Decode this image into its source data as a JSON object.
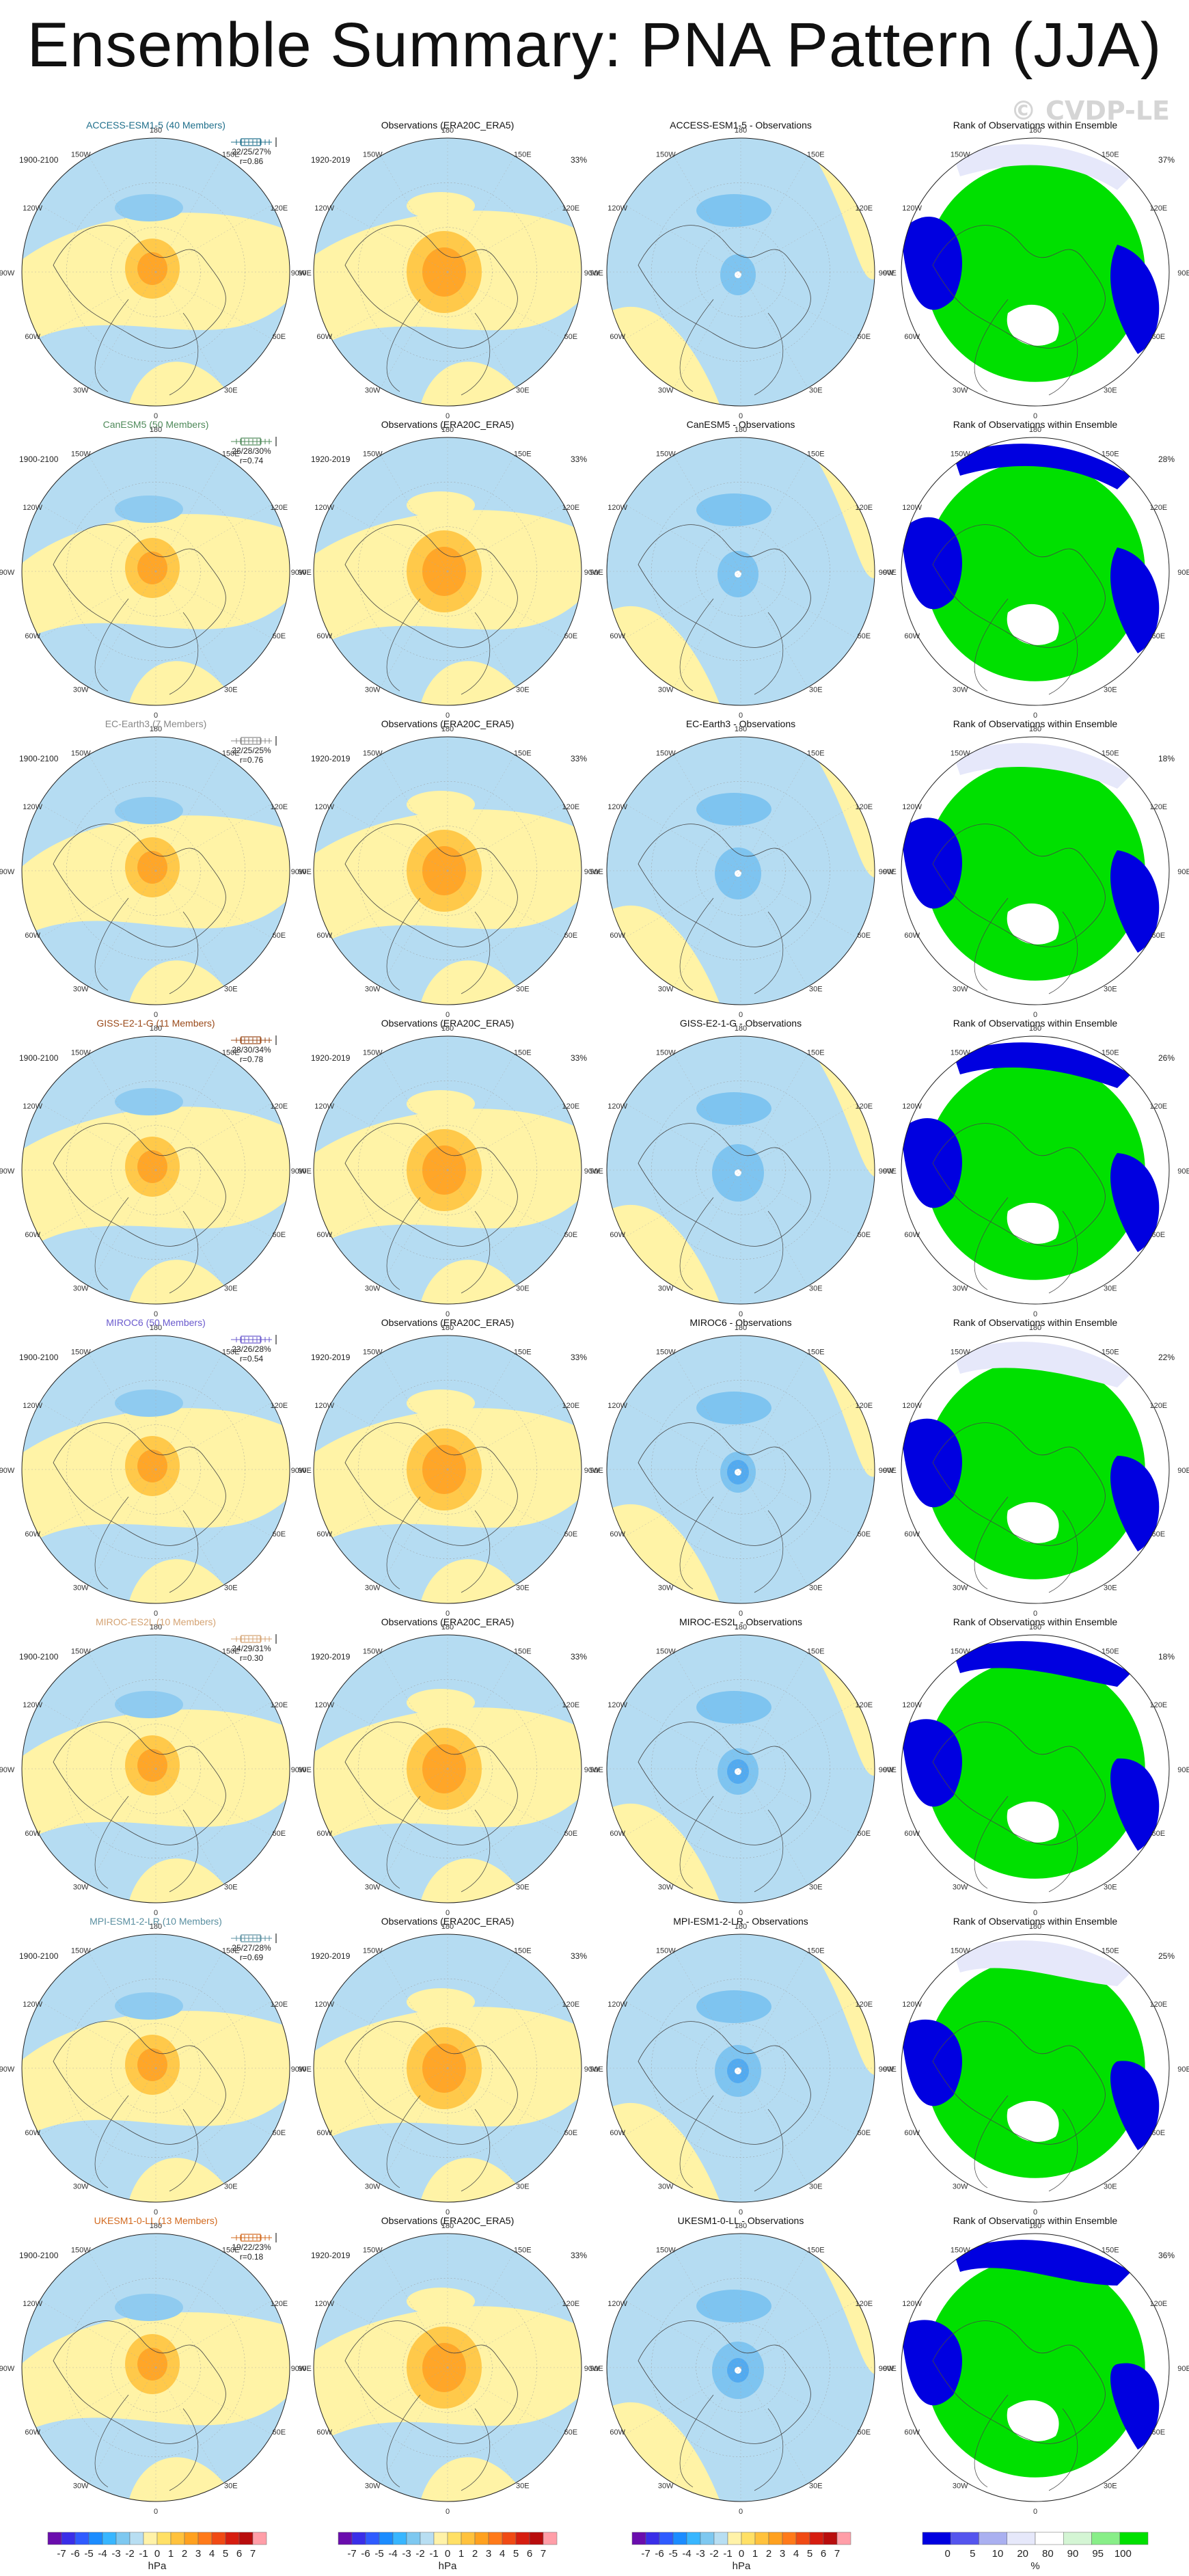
{
  "title": "Ensemble Summary: PNA Pattern (JJA)",
  "watermark": "© CVDP-LE",
  "column_titles": {
    "obs": "Observations (ERA20C_ERA5)",
    "rank": "Rank of Observations within Ensemble"
  },
  "periods": {
    "model": "1900-2100",
    "obs": "1920-2019"
  },
  "obs_percent": "33%",
  "lon_labels": [
    "180",
    "150W",
    "150E",
    "120W",
    "120E",
    "90W",
    "90E",
    "60W",
    "60E",
    "30W",
    "30E",
    "0"
  ],
  "rows": [
    {
      "model": "ACCESS-ESM1-5 (40 Members)",
      "diff_title": "ACCESS-ESM1-5 - Observations",
      "stats": "22/25/27%",
      "corr": "r=0.86",
      "rank_pct": "37%",
      "color": "#1f6f8b"
    },
    {
      "model": "CanESM5 (50 Members)",
      "diff_title": "CanESM5 - Observations",
      "stats": "26/28/30%",
      "corr": "r=0.74",
      "rank_pct": "28%",
      "color": "#4f8a5a"
    },
    {
      "model": "EC-Earth3 (7 Members)",
      "diff_title": "EC-Earth3 - Observations",
      "stats": "22/25/25%",
      "corr": "r=0.76",
      "rank_pct": "18%",
      "color": "#888888"
    },
    {
      "model": "GISS-E2-1-G (11 Members)",
      "diff_title": "GISS-E2-1-G - Observations",
      "stats": "28/30/34%",
      "corr": "r=0.78",
      "rank_pct": "26%",
      "color": "#9a4a1a"
    },
    {
      "model": "MIROC6 (50 Members)",
      "diff_title": "MIROC6 - Observations",
      "stats": "23/26/28%",
      "corr": "r=0.54",
      "rank_pct": "22%",
      "color": "#6a5acd"
    },
    {
      "model": "MIROC-ES2L (10 Members)",
      "diff_title": "MIROC-ES2L - Observations",
      "stats": "24/29/31%",
      "corr": "r=0.30",
      "rank_pct": "18%",
      "color": "#d4a373"
    },
    {
      "model": "MPI-ESM1-2-LR (10 Members)",
      "diff_title": "MPI-ESM1-2-LR - Observations",
      "stats": "25/27/28%",
      "corr": "r=0.69",
      "rank_pct": "25%",
      "color": "#5a8fa0"
    },
    {
      "model": "UKESM1-0-LL (13 Members)",
      "diff_title": "UKESM1-0-LL - Observations",
      "stats": "19/22/23%",
      "corr": "r=0.18",
      "rank_pct": "36%",
      "color": "#d2691e"
    }
  ],
  "colorbars": {
    "hpa": {
      "unit": "hPa",
      "labels": [
        "-7",
        "-6",
        "-5",
        "-4",
        "-3",
        "-2",
        "-1",
        "0",
        "1",
        "2",
        "3",
        "4",
        "5",
        "6",
        "7"
      ],
      "colors": [
        "#6a0dad",
        "#3a2ee8",
        "#2f5bff",
        "#1c8cff",
        "#38b6ff",
        "#7ec8f0",
        "#b8def2",
        "#fff2a8",
        "#ffe066",
        "#ffc23d",
        "#ffa11f",
        "#ff7a1a",
        "#f04a14",
        "#d61d10",
        "#b80d0d",
        "#ff9ea8"
      ]
    },
    "rank": {
      "unit": "%",
      "labels": [
        "0",
        "5",
        "10",
        "20",
        "80",
        "90",
        "95",
        "100"
      ],
      "colors": [
        "#0000e0",
        "#5555ee",
        "#aab0f0",
        "#e6e8fa",
        "#ffffff",
        "#d4f5d4",
        "#88ee88",
        "#00e000"
      ]
    }
  }
}
